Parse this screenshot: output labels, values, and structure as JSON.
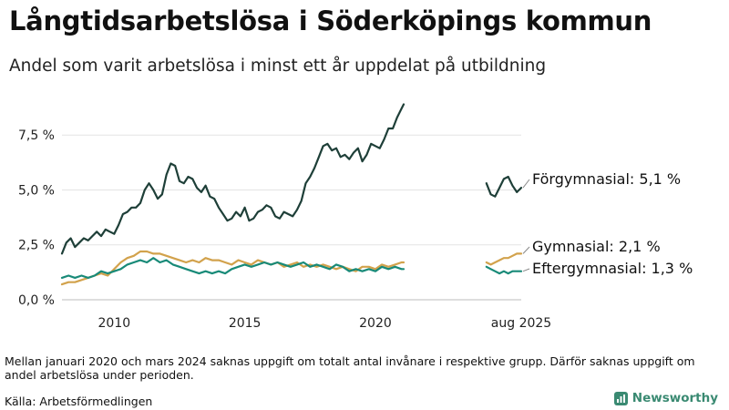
{
  "title": "Långtidsarbetslösa i Söderköpings kommun",
  "subtitle": "Andel som varit arbetslösa i minst ett år uppdelat på utbildning",
  "footnote": "Mellan januari 2020 och mars 2024 saknas uppgift om totalt antal invånare i respektive grupp. Därför saknas uppgift om andel arbetslösa under perioden.",
  "source": "Källa: Arbetsförmedlingen",
  "brand": {
    "name": "Newsworthy",
    "icon": "newsworthy-logo-icon",
    "color": "#3a8a72"
  },
  "chart_data": {
    "type": "line",
    "x_range": [
      "2008-01",
      "2025-08"
    ],
    "ylim": [
      0,
      9.5
    ],
    "grid": true,
    "y_ticks": [
      {
        "value": 0,
        "label": "0,0 %"
      },
      {
        "value": 2.5,
        "label": "2,5 %"
      },
      {
        "value": 5.0,
        "label": "5,0 %"
      },
      {
        "value": 7.5,
        "label": "7,5 %"
      }
    ],
    "x_ticks": [
      {
        "x": "2010-01",
        "label": "2010"
      },
      {
        "x": "2015-01",
        "label": "2015"
      },
      {
        "x": "2020-01",
        "label": "2020"
      },
      {
        "x": "2025-08",
        "label": "aug 2025"
      }
    ],
    "series": [
      {
        "name": "Förgymnasial",
        "end_label": "Förgymnasial: 5,1 %",
        "color": "#1e3f38",
        "segments": [
          [
            [
              "2008-01",
              2.1
            ],
            [
              "2008-03",
              2.6
            ],
            [
              "2008-05",
              2.8
            ],
            [
              "2008-07",
              2.4
            ],
            [
              "2008-09",
              2.6
            ],
            [
              "2008-11",
              2.8
            ],
            [
              "2009-01",
              2.7
            ],
            [
              "2009-03",
              2.9
            ],
            [
              "2009-05",
              3.1
            ],
            [
              "2009-07",
              2.9
            ],
            [
              "2009-09",
              3.2
            ],
            [
              "2009-11",
              3.1
            ],
            [
              "2010-01",
              3.0
            ],
            [
              "2010-03",
              3.4
            ],
            [
              "2010-05",
              3.9
            ],
            [
              "2010-07",
              4.0
            ],
            [
              "2010-09",
              4.2
            ],
            [
              "2010-11",
              4.2
            ],
            [
              "2011-01",
              4.4
            ],
            [
              "2011-03",
              5.0
            ],
            [
              "2011-05",
              5.3
            ],
            [
              "2011-07",
              5.0
            ],
            [
              "2011-09",
              4.6
            ],
            [
              "2011-11",
              4.8
            ],
            [
              "2012-01",
              5.7
            ],
            [
              "2012-03",
              6.2
            ],
            [
              "2012-05",
              6.1
            ],
            [
              "2012-07",
              5.4
            ],
            [
              "2012-09",
              5.3
            ],
            [
              "2012-11",
              5.6
            ],
            [
              "2013-01",
              5.5
            ],
            [
              "2013-03",
              5.1
            ],
            [
              "2013-05",
              4.9
            ],
            [
              "2013-07",
              5.2
            ],
            [
              "2013-09",
              4.7
            ],
            [
              "2013-11",
              4.6
            ],
            [
              "2014-01",
              4.2
            ],
            [
              "2014-03",
              3.9
            ],
            [
              "2014-05",
              3.6
            ],
            [
              "2014-07",
              3.7
            ],
            [
              "2014-09",
              4.0
            ],
            [
              "2014-11",
              3.8
            ],
            [
              "2015-01",
              4.2
            ],
            [
              "2015-03",
              3.6
            ],
            [
              "2015-05",
              3.7
            ],
            [
              "2015-07",
              4.0
            ],
            [
              "2015-09",
              4.1
            ],
            [
              "2015-11",
              4.3
            ],
            [
              "2016-01",
              4.2
            ],
            [
              "2016-03",
              3.8
            ],
            [
              "2016-05",
              3.7
            ],
            [
              "2016-07",
              4.0
            ],
            [
              "2016-09",
              3.9
            ],
            [
              "2016-11",
              3.8
            ],
            [
              "2017-01",
              4.1
            ],
            [
              "2017-03",
              4.5
            ],
            [
              "2017-05",
              5.3
            ],
            [
              "2017-07",
              5.6
            ],
            [
              "2017-09",
              6.0
            ],
            [
              "2017-11",
              6.5
            ],
            [
              "2018-01",
              7.0
            ],
            [
              "2018-03",
              7.1
            ],
            [
              "2018-05",
              6.8
            ],
            [
              "2018-07",
              6.9
            ],
            [
              "2018-09",
              6.5
            ],
            [
              "2018-11",
              6.6
            ],
            [
              "2019-01",
              6.4
            ],
            [
              "2019-03",
              6.7
            ],
            [
              "2019-05",
              6.9
            ],
            [
              "2019-07",
              6.3
            ],
            [
              "2019-09",
              6.6
            ],
            [
              "2019-11",
              7.1
            ],
            [
              "2020-01",
              7.0
            ],
            [
              "2020-03",
              6.9
            ],
            [
              "2020-05",
              7.3
            ],
            [
              "2020-07",
              7.8
            ],
            [
              "2020-09",
              7.8
            ],
            [
              "2020-11",
              8.3
            ],
            [
              "2021-01",
              8.7
            ],
            [
              "2021-02",
              8.9
            ]
          ],
          [
            [
              "2024-04",
              5.3
            ],
            [
              "2024-06",
              4.8
            ],
            [
              "2024-08",
              4.7
            ],
            [
              "2024-10",
              5.1
            ],
            [
              "2024-12",
              5.5
            ],
            [
              "2025-02",
              5.6
            ],
            [
              "2025-04",
              5.2
            ],
            [
              "2025-06",
              4.9
            ],
            [
              "2025-08",
              5.1
            ]
          ]
        ]
      },
      {
        "name": "Gymnasial",
        "end_label": "Gymnasial: 2,1 %",
        "color": "#d2a24c",
        "segments": [
          [
            [
              "2008-01",
              0.7
            ],
            [
              "2008-04",
              0.8
            ],
            [
              "2008-07",
              0.8
            ],
            [
              "2008-10",
              0.9
            ],
            [
              "2009-01",
              1.0
            ],
            [
              "2009-04",
              1.1
            ],
            [
              "2009-07",
              1.2
            ],
            [
              "2009-10",
              1.1
            ],
            [
              "2010-01",
              1.4
            ],
            [
              "2010-04",
              1.7
            ],
            [
              "2010-07",
              1.9
            ],
            [
              "2010-10",
              2.0
            ],
            [
              "2011-01",
              2.2
            ],
            [
              "2011-04",
              2.2
            ],
            [
              "2011-07",
              2.1
            ],
            [
              "2011-10",
              2.1
            ],
            [
              "2012-01",
              2.0
            ],
            [
              "2012-04",
              1.9
            ],
            [
              "2012-07",
              1.8
            ],
            [
              "2012-10",
              1.7
            ],
            [
              "2013-01",
              1.8
            ],
            [
              "2013-04",
              1.7
            ],
            [
              "2013-07",
              1.9
            ],
            [
              "2013-10",
              1.8
            ],
            [
              "2014-01",
              1.8
            ],
            [
              "2014-04",
              1.7
            ],
            [
              "2014-07",
              1.6
            ],
            [
              "2014-10",
              1.8
            ],
            [
              "2015-01",
              1.7
            ],
            [
              "2015-04",
              1.6
            ],
            [
              "2015-07",
              1.8
            ],
            [
              "2015-10",
              1.7
            ],
            [
              "2016-01",
              1.6
            ],
            [
              "2016-04",
              1.7
            ],
            [
              "2016-07",
              1.5
            ],
            [
              "2016-10",
              1.6
            ],
            [
              "2017-01",
              1.7
            ],
            [
              "2017-04",
              1.5
            ],
            [
              "2017-07",
              1.6
            ],
            [
              "2017-10",
              1.5
            ],
            [
              "2018-01",
              1.6
            ],
            [
              "2018-04",
              1.5
            ],
            [
              "2018-07",
              1.4
            ],
            [
              "2018-10",
              1.5
            ],
            [
              "2019-01",
              1.4
            ],
            [
              "2019-04",
              1.3
            ],
            [
              "2019-07",
              1.5
            ],
            [
              "2019-10",
              1.5
            ],
            [
              "2020-01",
              1.4
            ],
            [
              "2020-04",
              1.6
            ],
            [
              "2020-07",
              1.5
            ],
            [
              "2020-10",
              1.6
            ],
            [
              "2021-01",
              1.7
            ],
            [
              "2021-02",
              1.7
            ]
          ],
          [
            [
              "2024-04",
              1.7
            ],
            [
              "2024-06",
              1.6
            ],
            [
              "2024-08",
              1.7
            ],
            [
              "2024-10",
              1.8
            ],
            [
              "2024-12",
              1.9
            ],
            [
              "2025-02",
              1.9
            ],
            [
              "2025-04",
              2.0
            ],
            [
              "2025-06",
              2.1
            ],
            [
              "2025-08",
              2.1
            ]
          ]
        ]
      },
      {
        "name": "Eftergymnasial",
        "end_label": "Eftergymnasial: 1,3 %",
        "color": "#188a78",
        "segments": [
          [
            [
              "2008-01",
              1.0
            ],
            [
              "2008-04",
              1.1
            ],
            [
              "2008-07",
              1.0
            ],
            [
              "2008-10",
              1.1
            ],
            [
              "2009-01",
              1.0
            ],
            [
              "2009-04",
              1.1
            ],
            [
              "2009-07",
              1.3
            ],
            [
              "2009-10",
              1.2
            ],
            [
              "2010-01",
              1.3
            ],
            [
              "2010-04",
              1.4
            ],
            [
              "2010-07",
              1.6
            ],
            [
              "2010-10",
              1.7
            ],
            [
              "2011-01",
              1.8
            ],
            [
              "2011-04",
              1.7
            ],
            [
              "2011-07",
              1.9
            ],
            [
              "2011-10",
              1.7
            ],
            [
              "2012-01",
              1.8
            ],
            [
              "2012-04",
              1.6
            ],
            [
              "2012-07",
              1.5
            ],
            [
              "2012-10",
              1.4
            ],
            [
              "2013-01",
              1.3
            ],
            [
              "2013-04",
              1.2
            ],
            [
              "2013-07",
              1.3
            ],
            [
              "2013-10",
              1.2
            ],
            [
              "2014-01",
              1.3
            ],
            [
              "2014-04",
              1.2
            ],
            [
              "2014-07",
              1.4
            ],
            [
              "2014-10",
              1.5
            ],
            [
              "2015-01",
              1.6
            ],
            [
              "2015-04",
              1.5
            ],
            [
              "2015-07",
              1.6
            ],
            [
              "2015-10",
              1.7
            ],
            [
              "2016-01",
              1.6
            ],
            [
              "2016-04",
              1.7
            ],
            [
              "2016-07",
              1.6
            ],
            [
              "2016-10",
              1.5
            ],
            [
              "2017-01",
              1.6
            ],
            [
              "2017-04",
              1.7
            ],
            [
              "2017-07",
              1.5
            ],
            [
              "2017-10",
              1.6
            ],
            [
              "2018-01",
              1.5
            ],
            [
              "2018-04",
              1.4
            ],
            [
              "2018-07",
              1.6
            ],
            [
              "2018-10",
              1.5
            ],
            [
              "2019-01",
              1.3
            ],
            [
              "2019-04",
              1.4
            ],
            [
              "2019-07",
              1.3
            ],
            [
              "2019-10",
              1.4
            ],
            [
              "2020-01",
              1.3
            ],
            [
              "2020-04",
              1.5
            ],
            [
              "2020-07",
              1.4
            ],
            [
              "2020-10",
              1.5
            ],
            [
              "2021-01",
              1.4
            ],
            [
              "2021-02",
              1.4
            ]
          ],
          [
            [
              "2024-04",
              1.5
            ],
            [
              "2024-06",
              1.4
            ],
            [
              "2024-08",
              1.3
            ],
            [
              "2024-10",
              1.2
            ],
            [
              "2024-12",
              1.3
            ],
            [
              "2025-02",
              1.2
            ],
            [
              "2025-04",
              1.3
            ],
            [
              "2025-06",
              1.3
            ],
            [
              "2025-08",
              1.3
            ]
          ]
        ]
      }
    ]
  }
}
